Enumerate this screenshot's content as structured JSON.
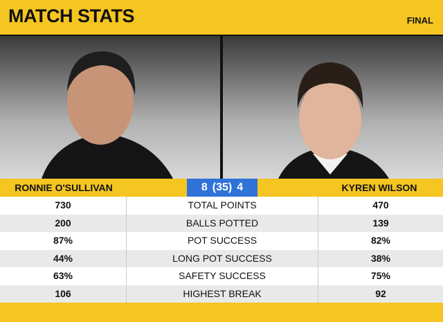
{
  "header": {
    "title": "MATCH STATS",
    "tag": "FINAL"
  },
  "players": {
    "left": "RONNIE O'SULLIVAN",
    "right": "KYREN WILSON"
  },
  "score": {
    "left": "8",
    "frames": "(35)",
    "right": "4"
  },
  "table": {
    "rows": [
      [
        "730",
        "TOTAL POINTS",
        "470"
      ],
      [
        "200",
        "BALLS POTTED",
        "139"
      ],
      [
        "87%",
        "POT SUCCESS",
        "82%"
      ],
      [
        "44%",
        "LONG POT SUCCESS",
        "38%"
      ],
      [
        "63%",
        "SAFETY SUCCESS",
        "75%"
      ],
      [
        "106",
        "HIGHEST BREAK",
        "92"
      ]
    ]
  }
}
